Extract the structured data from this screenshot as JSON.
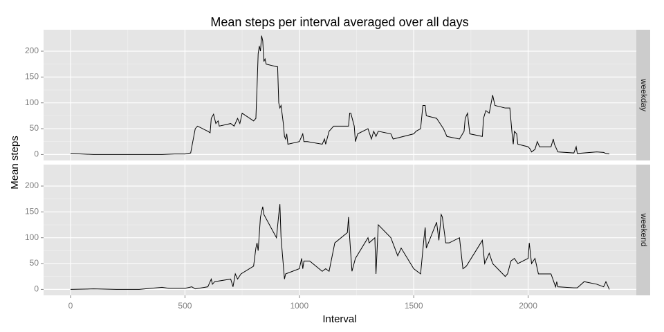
{
  "title": "Mean steps per interval averaged over all days",
  "x_label": "Interval",
  "y_label": "Mean steps",
  "chart_data": [
    {
      "type": "line",
      "facet": "weekday",
      "color": "#000000",
      "grid": true,
      "x": [
        0,
        100,
        200,
        300,
        400,
        455,
        500,
        525,
        530,
        545,
        555,
        600,
        610,
        615,
        625,
        635,
        645,
        650,
        700,
        715,
        730,
        740,
        750,
        800,
        810,
        815,
        820,
        825,
        830,
        835,
        840,
        845,
        850,
        855,
        900,
        905,
        910,
        915,
        920,
        930,
        935,
        940,
        945,
        950,
        1000,
        1015,
        1020,
        1035,
        1100,
        1110,
        1115,
        1130,
        1150,
        1215,
        1220,
        1225,
        1240,
        1245,
        1255,
        1300,
        1315,
        1325,
        1335,
        1345,
        1400,
        1410,
        1500,
        1510,
        1530,
        1540,
        1550,
        1555,
        1600,
        1630,
        1645,
        1700,
        1720,
        1725,
        1735,
        1740,
        1745,
        1800,
        1805,
        1815,
        1830,
        1845,
        1855,
        1900,
        1920,
        1930,
        1935,
        1940,
        1950,
        1955,
        2000,
        2010,
        2015,
        2030,
        2040,
        2050,
        2100,
        2110,
        2115,
        2130,
        2200,
        2210,
        2215,
        2300,
        2330,
        2340,
        2355
      ],
      "values": [
        2,
        0,
        0,
        0,
        0,
        1,
        1,
        3,
        15,
        50,
        55,
        45,
        42,
        70,
        78,
        60,
        65,
        55,
        60,
        55,
        70,
        60,
        80,
        65,
        70,
        130,
        195,
        210,
        200,
        230,
        220,
        180,
        185,
        175,
        170,
        170,
        100,
        90,
        95,
        60,
        35,
        30,
        40,
        20,
        25,
        40,
        25,
        25,
        20,
        30,
        20,
        45,
        55,
        55,
        80,
        80,
        55,
        25,
        40,
        50,
        30,
        45,
        35,
        45,
        40,
        30,
        40,
        45,
        50,
        95,
        95,
        75,
        70,
        50,
        35,
        30,
        45,
        70,
        80,
        60,
        40,
        35,
        70,
        85,
        80,
        115,
        95,
        90,
        90,
        40,
        20,
        45,
        40,
        20,
        15,
        10,
        5,
        10,
        25,
        15,
        15,
        30,
        20,
        5,
        3,
        15,
        2,
        5,
        4,
        2,
        1
      ],
      "xlim": [
        -118,
        2473
      ],
      "xticks": [
        0,
        500,
        1000,
        1500,
        2000
      ],
      "ylim": [
        -11.5,
        241.5
      ],
      "yticks": [
        0,
        50,
        100,
        150,
        200
      ]
    },
    {
      "type": "line",
      "facet": "weekend",
      "color": "#000000",
      "grid": true,
      "x": [
        0,
        100,
        200,
        300,
        400,
        430,
        500,
        530,
        545,
        600,
        615,
        620,
        630,
        700,
        710,
        720,
        730,
        745,
        800,
        810,
        815,
        820,
        830,
        840,
        845,
        900,
        910,
        915,
        920,
        935,
        940,
        1000,
        1010,
        1015,
        1020,
        1035,
        1045,
        1100,
        1115,
        1130,
        1155,
        1210,
        1215,
        1220,
        1230,
        1245,
        1300,
        1305,
        1330,
        1335,
        1345,
        1400,
        1430,
        1445,
        1500,
        1530,
        1545,
        1550,
        1555,
        1600,
        1610,
        1620,
        1625,
        1640,
        1655,
        1700,
        1715,
        1730,
        1800,
        1810,
        1830,
        1845,
        1900,
        1910,
        1925,
        1940,
        1955,
        2000,
        2005,
        2015,
        2030,
        2045,
        2100,
        2120,
        2125,
        2130,
        2200,
        2215,
        2245,
        2300,
        2330,
        2340,
        2355
      ],
      "values": [
        0,
        1,
        0,
        0,
        4,
        2,
        2,
        5,
        1,
        5,
        20,
        10,
        15,
        20,
        5,
        30,
        20,
        30,
        45,
        80,
        90,
        75,
        140,
        160,
        145,
        100,
        145,
        165,
        100,
        20,
        30,
        40,
        60,
        40,
        55,
        55,
        55,
        35,
        40,
        35,
        90,
        110,
        140,
        100,
        35,
        60,
        100,
        90,
        100,
        30,
        125,
        100,
        65,
        80,
        40,
        30,
        100,
        120,
        80,
        130,
        95,
        145,
        140,
        90,
        90,
        100,
        40,
        45,
        95,
        50,
        70,
        50,
        25,
        30,
        55,
        60,
        50,
        60,
        90,
        50,
        60,
        30,
        30,
        5,
        15,
        5,
        3,
        3,
        15,
        10,
        5,
        15,
        0
      ],
      "xlim": [
        -118,
        2473
      ],
      "xticks": [
        0,
        500,
        1000,
        1500,
        2000
      ],
      "ylim": [
        -11.5,
        241.5
      ],
      "yticks": [
        0,
        50,
        100,
        150,
        200
      ]
    }
  ]
}
